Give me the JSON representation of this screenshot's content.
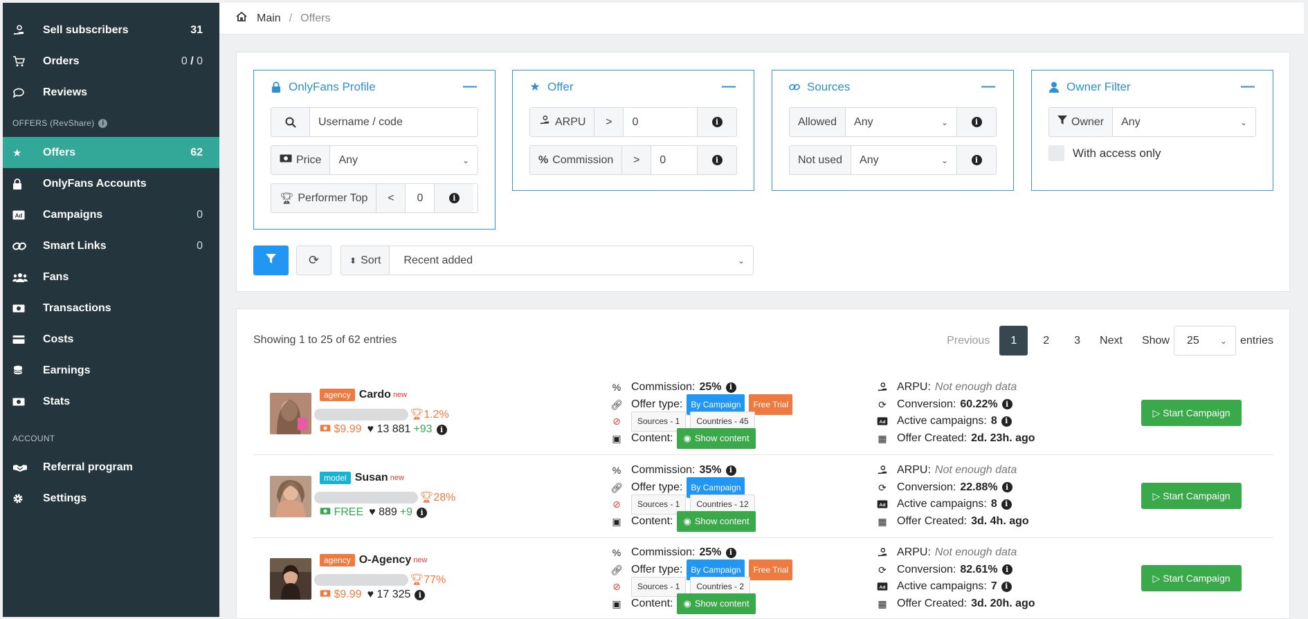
{
  "sidebar": {
    "items": [
      {
        "label": "Sell subscribers",
        "count": "31",
        "icon": "hand-coin-icon"
      },
      {
        "label": "Orders",
        "count_a": "0",
        "count_sep": " / ",
        "count_b": "0",
        "icon": "cart-icon"
      },
      {
        "label": "Reviews",
        "count": "",
        "icon": "comment-icon"
      }
    ],
    "section_offers": "OFFERS (RevShare)",
    "offers_items": [
      {
        "label": "Offers",
        "count": "62",
        "icon": "star-icon"
      },
      {
        "label": "OnlyFans Accounts",
        "count": "",
        "icon": "lock-icon"
      },
      {
        "label": "Campaigns",
        "count": "0",
        "icon": "ad-icon"
      },
      {
        "label": "Smart Links",
        "count": "0",
        "icon": "link-icon"
      },
      {
        "label": "Fans",
        "count": "",
        "icon": "users-icon"
      },
      {
        "label": "Transactions",
        "count": "",
        "icon": "money-icon"
      },
      {
        "label": "Costs",
        "count": "",
        "icon": "credit-card-icon"
      },
      {
        "label": "Earnings",
        "count": "",
        "icon": "coins-icon"
      },
      {
        "label": "Stats",
        "count": "",
        "icon": "money-bill-icon"
      }
    ],
    "section_account": "ACCOUNT",
    "account_items": [
      {
        "label": "Referral program",
        "icon": "handshake-icon"
      },
      {
        "label": "Settings",
        "icon": "gear-icon"
      }
    ]
  },
  "breadcrumb": {
    "main": "Main",
    "current": "Offers"
  },
  "filters": {
    "profile": {
      "title": "OnlyFans Profile",
      "search_placeholder": "Username / code",
      "price_label": "Price",
      "price_value": "Any",
      "top_label": "Performer Top",
      "top_op": "<",
      "top_value": "0"
    },
    "offer": {
      "title": "Offer",
      "arpu_label": "ARPU",
      "arpu_op": ">",
      "arpu_value": "0",
      "commission_label": "Commission",
      "commission_op": ">",
      "commission_value": "0"
    },
    "sources": {
      "title": "Sources",
      "allowed_label": "Allowed",
      "allowed_value": "Any",
      "notused_label": "Not used",
      "notused_value": "Any"
    },
    "owner": {
      "title": "Owner Filter",
      "owner_label": "Owner",
      "owner_value": "Any",
      "access_label": "With access only"
    },
    "sort_label": "Sort",
    "sort_value": "Recent added"
  },
  "list": {
    "showing": "Showing 1 to 25 of 62 entries",
    "pager": {
      "prev": "Previous",
      "pages": [
        "1",
        "2",
        "3"
      ],
      "next": "Next",
      "show": "Show",
      "per_page": "25",
      "entries": "entries"
    },
    "rows": [
      {
        "tag": "agency",
        "name": "Cardo",
        "new": "new",
        "top": "1.2%",
        "price": "$9.99",
        "price_kind": "paid",
        "likes": "13 881",
        "delta": "+93",
        "commission_label": "Commission:",
        "commission": "25%",
        "offer_type_label": "Offer type:",
        "offer_types": [
          "By Campaign",
          "Free Trial"
        ],
        "sources": "Sources - 1",
        "countries": "Countries - 45",
        "content_label": "Content:",
        "show_content": "Show content",
        "arpu_label": "ARPU:",
        "arpu": "Not enough data",
        "conversion_label": "Conversion:",
        "conversion": "60.22%",
        "active_label": "Active campaigns:",
        "active": "8",
        "created_label": "Offer Created:",
        "created": "2d. 23h. ago",
        "button": "Start Campaign"
      },
      {
        "tag": "model",
        "name": "Susan",
        "new": "new",
        "top": "28%",
        "price": "FREE",
        "price_kind": "free",
        "likes": "889",
        "delta": "+9",
        "commission_label": "Commission:",
        "commission": "35%",
        "offer_type_label": "Offer type:",
        "offer_types": [
          "By Campaign"
        ],
        "sources": "Sources - 1",
        "countries": "Countries - 12",
        "content_label": "Content:",
        "show_content": "Show content",
        "arpu_label": "ARPU:",
        "arpu": "Not enough data",
        "conversion_label": "Conversion:",
        "conversion": "22.88%",
        "active_label": "Active campaigns:",
        "active": "8",
        "created_label": "Offer Created:",
        "created": "3d. 4h. ago",
        "button": "Start Campaign"
      },
      {
        "tag": "agency",
        "name": "O-Agency",
        "new": "new",
        "top": "77%",
        "price": "$9.99",
        "price_kind": "paid",
        "likes": "17 325",
        "delta": "",
        "commission_label": "Commission:",
        "commission": "25%",
        "offer_type_label": "Offer type:",
        "offer_types": [
          "By Campaign",
          "Free Trial"
        ],
        "sources": "Sources - 1",
        "countries": "Countries - 2",
        "content_label": "Content:",
        "show_content": "Show content",
        "arpu_label": "ARPU:",
        "arpu": "Not enough data",
        "conversion_label": "Conversion:",
        "conversion": "82.61%",
        "active_label": "Active campaigns:",
        "active": "7",
        "created_label": "Offer Created:",
        "created": "3d. 20h. ago",
        "button": "Start Campaign"
      }
    ]
  },
  "colors": {
    "sidebar_bg": "#24353d",
    "active_item": "#33a798",
    "accent_blue": "#2196f3",
    "success": "#3aa94a",
    "orange": "#ef7a3f"
  }
}
